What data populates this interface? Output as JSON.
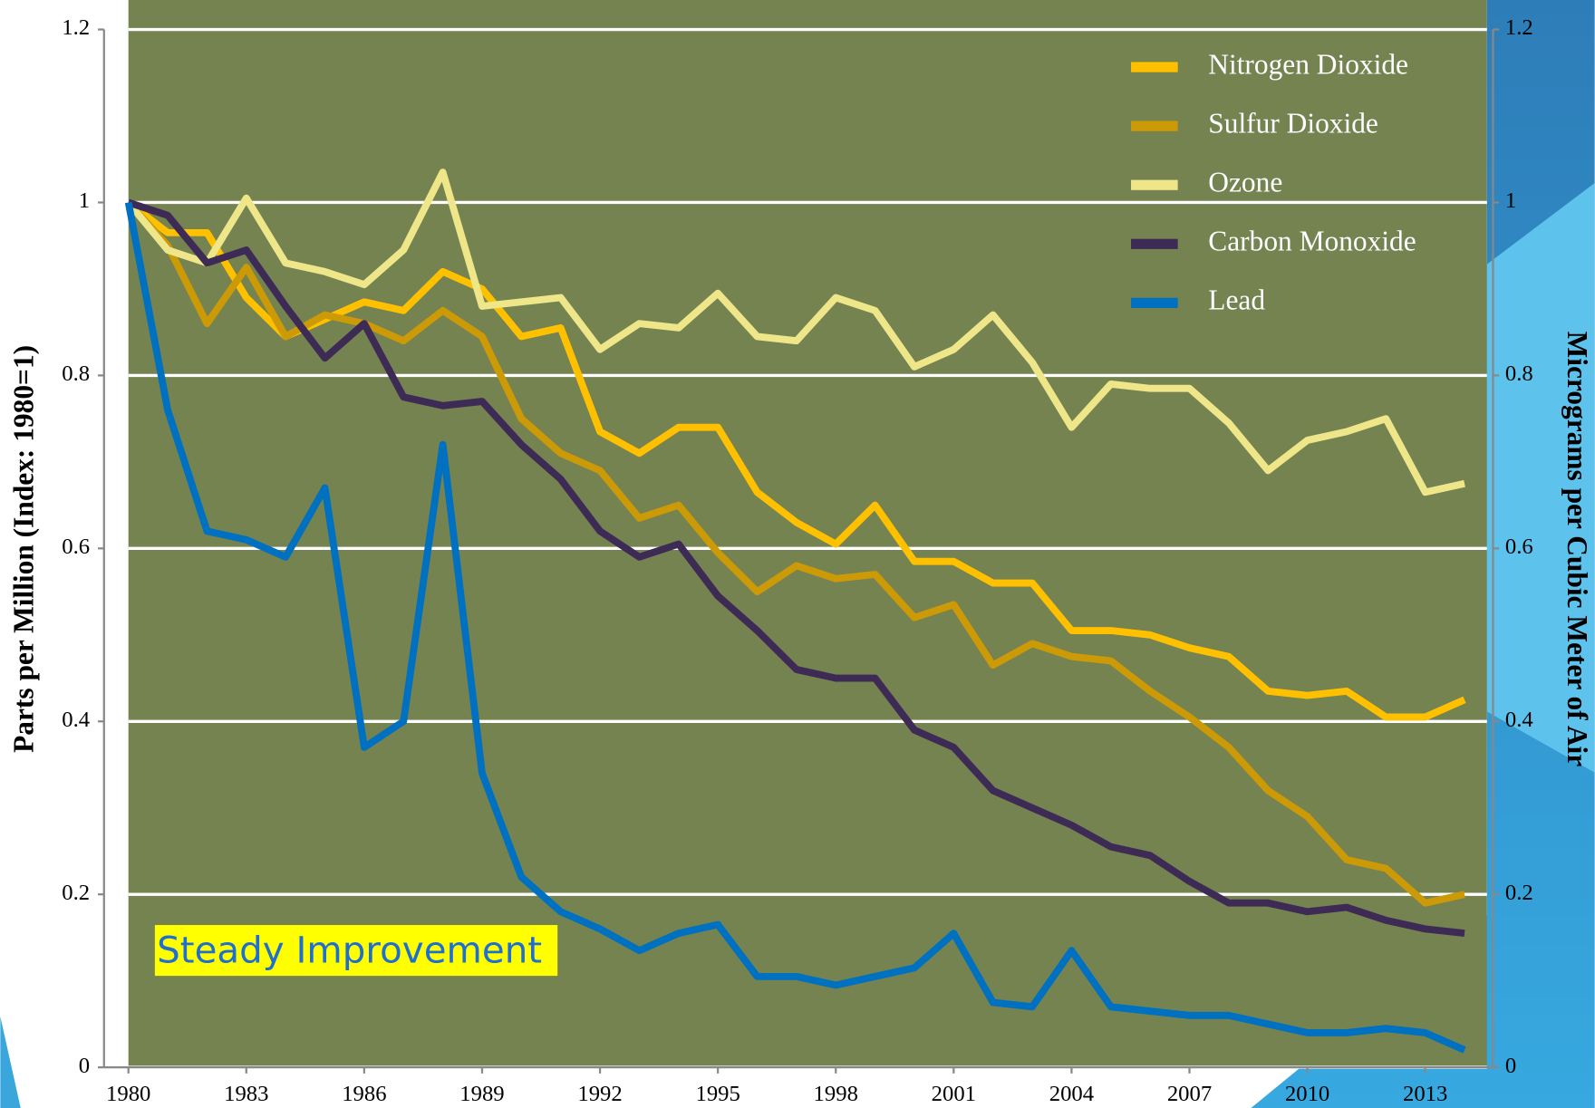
{
  "chart_data": {
    "type": "line",
    "y_label": "Parts per Million (Index: 1980=1)",
    "y2_label": "Micrograms per Cubic Meter of Air",
    "annotation": "Steady Improvement",
    "x": [
      1980,
      1981,
      1982,
      1983,
      1984,
      1985,
      1986,
      1987,
      1988,
      1989,
      1990,
      1991,
      1992,
      1993,
      1994,
      1995,
      1996,
      1997,
      1998,
      1999,
      2000,
      2001,
      2002,
      2003,
      2004,
      2005,
      2006,
      2007,
      2008,
      2009,
      2010,
      2011,
      2012,
      2013,
      2014
    ],
    "xlim": [
      1980,
      2014
    ],
    "xticks": [
      1980,
      1983,
      1986,
      1989,
      1992,
      1995,
      1998,
      2001,
      2004,
      2007,
      2010,
      2013
    ],
    "ylim": [
      0,
      1.2
    ],
    "yticks": [
      0,
      0.2,
      0.4,
      0.6,
      0.8,
      1,
      1.2
    ],
    "y2lim": [
      0,
      1.2
    ],
    "y2ticks": [
      0,
      0.2,
      0.4,
      0.6,
      0.8,
      1,
      1.2
    ],
    "grid": true,
    "background": "#748350",
    "series": [
      {
        "name": "Nitrogen Dioxide",
        "color": "#ffc000",
        "values": [
          1.0,
          0.965,
          0.965,
          0.89,
          0.845,
          0.865,
          0.885,
          0.875,
          0.92,
          0.9,
          0.845,
          0.855,
          0.735,
          0.71,
          0.74,
          0.74,
          0.665,
          0.63,
          0.605,
          0.65,
          0.585,
          0.585,
          0.56,
          0.56,
          0.505,
          0.505,
          0.5,
          0.485,
          0.475,
          0.435,
          0.43,
          0.435,
          0.405,
          0.405,
          0.425
        ]
      },
      {
        "name": "Sulfur Dioxide",
        "color": "#cc9a06",
        "values": [
          1.0,
          0.95,
          0.86,
          0.925,
          0.845,
          0.87,
          0.86,
          0.84,
          0.875,
          0.845,
          0.75,
          0.71,
          0.69,
          0.635,
          0.65,
          0.595,
          0.55,
          0.58,
          0.565,
          0.57,
          0.52,
          0.535,
          0.465,
          0.49,
          0.475,
          0.47,
          0.435,
          0.405,
          0.37,
          0.32,
          0.29,
          0.24,
          0.23,
          0.19,
          0.2
        ]
      },
      {
        "name": "Ozone",
        "color": "#efe68a",
        "values": [
          1.0,
          0.945,
          0.93,
          1.005,
          0.93,
          0.92,
          0.905,
          0.945,
          1.035,
          0.88,
          0.885,
          0.89,
          0.83,
          0.86,
          0.855,
          0.895,
          0.845,
          0.84,
          0.89,
          0.875,
          0.81,
          0.83,
          0.87,
          0.815,
          0.74,
          0.79,
          0.785,
          0.785,
          0.745,
          0.69,
          0.725,
          0.735,
          0.75,
          0.665,
          0.675
        ]
      },
      {
        "name": "Carbon Monoxide",
        "color": "#3d2b56",
        "values": [
          1.0,
          0.985,
          0.93,
          0.945,
          0.88,
          0.82,
          0.86,
          0.775,
          0.765,
          0.77,
          0.72,
          0.68,
          0.62,
          0.59,
          0.605,
          0.545,
          0.505,
          0.46,
          0.45,
          0.45,
          0.39,
          0.37,
          0.32,
          0.3,
          0.28,
          0.255,
          0.245,
          0.215,
          0.19,
          0.19,
          0.18,
          0.185,
          0.17,
          0.16,
          0.155
        ]
      },
      {
        "name": "Lead",
        "color": "#0070c0",
        "values": [
          1.0,
          0.76,
          0.62,
          0.61,
          0.59,
          0.67,
          0.37,
          0.4,
          0.72,
          0.34,
          0.22,
          0.18,
          0.16,
          0.135,
          0.155,
          0.165,
          0.105,
          0.105,
          0.095,
          0.105,
          0.115,
          0.155,
          0.075,
          0.07,
          0.135,
          0.07,
          0.065,
          0.06,
          0.06,
          0.05,
          0.04,
          0.04,
          0.045,
          0.04,
          0.02
        ]
      }
    ]
  }
}
